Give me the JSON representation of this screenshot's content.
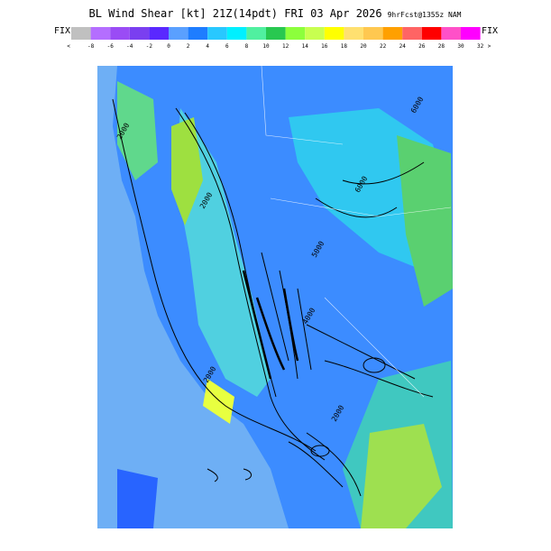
{
  "header": {
    "title": "BL Wind Shear [kt] 21Z(14pdt) FRI 03 Apr 2026",
    "subtitle": "9hrFcst@1355z NAM",
    "fix_left": "FIX",
    "fix_right": "FIX"
  },
  "colorbar": {
    "labels": [
      "<",
      "-8",
      "-6",
      "-4",
      "-2",
      "0",
      "2",
      "4",
      "6",
      "8",
      "10",
      "12",
      "14",
      "16",
      "18",
      "20",
      "22",
      "24",
      "26",
      "28",
      "30",
      "32",
      ">"
    ],
    "colors": [
      "#c0c0c0",
      "#b46eff",
      "#9a4cf5",
      "#7a3ff0",
      "#5a28ff",
      "#5aa0ff",
      "#1e7dff",
      "#28c8ff",
      "#00f0ff",
      "#50f0a0",
      "#28c850",
      "#8cff3c",
      "#c8ff50",
      "#ffff00",
      "#ffe070",
      "#ffc850",
      "#ffa000",
      "#ff6464",
      "#ff0000",
      "#ff50c8",
      "#ff00ff"
    ]
  },
  "map": {
    "contour_labels": [
      "2000",
      "2000",
      "2000",
      "6000",
      "4000",
      "5000",
      "6000",
      "2000"
    ]
  }
}
